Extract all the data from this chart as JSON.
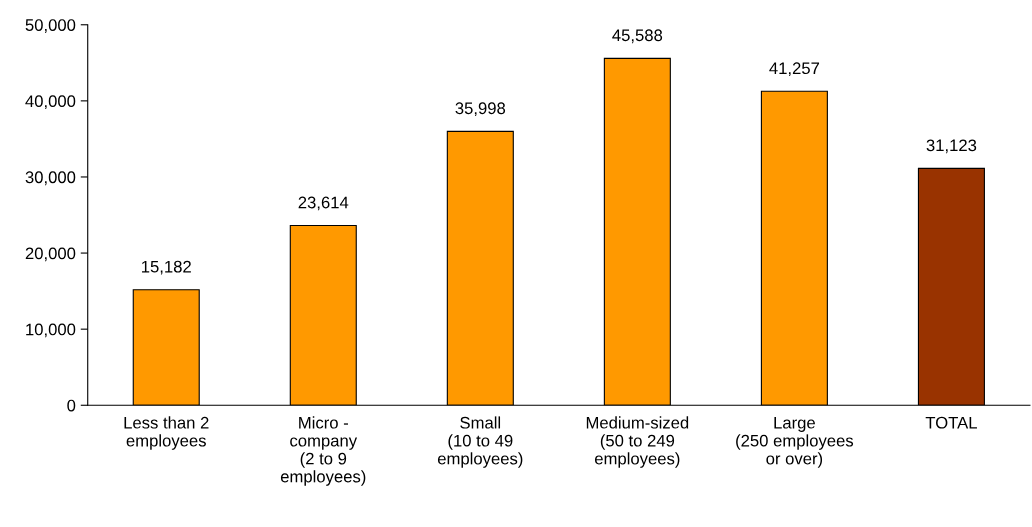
{
  "chart_data": {
    "type": "bar",
    "categories": [
      "Less than 2\nemployees",
      "Micro -\ncompany\n(2 to 9\nemployees)",
      "Small\n(10 to 49\nemployees)",
      "Medium-sized\n(50 to 249\nemployees)",
      "Large\n(250 employees\nor over)",
      "TOTAL"
    ],
    "values": [
      15182,
      23614,
      35998,
      45588,
      41257,
      31123
    ],
    "value_labels": [
      "15,182",
      "23,614",
      "35,998",
      "45,588",
      "41,257",
      "31,123"
    ],
    "colors": [
      "#ff9900",
      "#ff9900",
      "#ff9900",
      "#ff9900",
      "#ff9900",
      "#993300"
    ],
    "ylim": [
      0,
      50000
    ],
    "yticks": [
      0,
      {
        "value": 10000,
        "label": "10,000"
      },
      {
        "value": 20000,
        "label": "20,000"
      },
      {
        "value": 30000,
        "label": "30,000"
      },
      {
        "value": 40000,
        "label": "40,000"
      },
      {
        "value": 50000,
        "label": "50,000"
      }
    ],
    "grid": false,
    "legend": false
  }
}
